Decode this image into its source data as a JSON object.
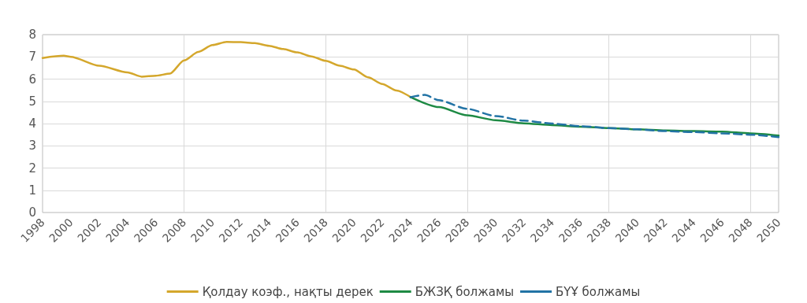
{
  "chart_data": {
    "type": "line",
    "legend": "bottom",
    "grid": true,
    "line_style": "solid",
    "marker": "none",
    "xlim": [
      1998,
      2050
    ],
    "xticks": [
      1998,
      2000,
      2002,
      2004,
      2006,
      2008,
      2010,
      2012,
      2014,
      2016,
      2018,
      2020,
      2022,
      2024,
      2026,
      2028,
      2030,
      2032,
      2034,
      2036,
      2038,
      2040,
      2042,
      2044,
      2046,
      2048,
      2050
    ],
    "ylim": [
      0,
      8
    ],
    "yticks": [
      0,
      1,
      2,
      3,
      4,
      5,
      6,
      7,
      8
    ],
    "series": [
      {
        "name": "Қолдау коэф., нақты дерек",
        "color": "#d4a72c",
        "x": [
          1998,
          1999.5,
          2000,
          2002,
          2004,
          2005,
          2006,
          2007,
          2008,
          2009,
          2010,
          2011,
          2012,
          2013,
          2014,
          2015,
          2016,
          2017,
          2018,
          2019,
          2020,
          2021,
          2022,
          2023,
          2024
        ],
        "values": [
          6.95,
          7.05,
          7.0,
          6.6,
          6.3,
          6.11,
          6.15,
          6.25,
          6.84,
          7.22,
          7.53,
          7.67,
          7.66,
          7.62,
          7.5,
          7.35,
          7.2,
          7.02,
          6.82,
          6.6,
          6.43,
          6.08,
          5.78,
          5.49,
          5.19
        ]
      },
      {
        "name": "БЖЗҚ болжамы",
        "color": "#1e8a44",
        "x": [
          2024,
          2026,
          2028,
          2030,
          2032,
          2034,
          2036,
          2038,
          2040,
          2042,
          2044,
          2046,
          2048,
          2050
        ],
        "values": [
          5.19,
          4.74,
          4.37,
          4.15,
          4.01,
          3.93,
          3.86,
          3.8,
          3.74,
          3.69,
          3.66,
          3.64,
          3.56,
          3.46
        ]
      },
      {
        "name": "БҮҰ болжамы",
        "color": "#2273a5",
        "line_style": "dashed",
        "x": [
          2024,
          2025,
          2026,
          2028,
          2030,
          2032,
          2034,
          2036,
          2038,
          2040,
          2042,
          2044,
          2046,
          2048,
          2050
        ],
        "values": [
          5.19,
          5.29,
          5.05,
          4.66,
          4.34,
          4.13,
          4.0,
          3.88,
          3.8,
          3.74,
          3.66,
          3.62,
          3.56,
          3.5,
          3.39
        ]
      }
    ]
  }
}
